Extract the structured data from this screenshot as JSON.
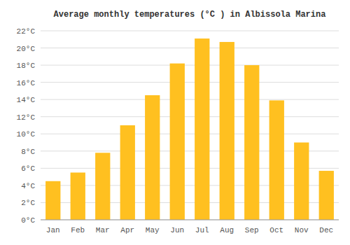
{
  "chart_data": {
    "type": "bar",
    "title": "Average monthly temperatures (°C ) in Albissola Marina",
    "categories": [
      "Jan",
      "Feb",
      "Mar",
      "Apr",
      "May",
      "Jun",
      "Jul",
      "Aug",
      "Sep",
      "Oct",
      "Nov",
      "Dec"
    ],
    "values": [
      4.5,
      5.5,
      7.8,
      11.0,
      14.5,
      18.2,
      21.1,
      20.7,
      18.0,
      13.9,
      9.0,
      5.7
    ],
    "color": "#FFC020",
    "ylim": [
      0,
      22
    ],
    "yticks": [
      {
        "value": 0,
        "label": "0°C"
      },
      {
        "value": 2,
        "label": "2°C"
      },
      {
        "value": 4,
        "label": "4°C"
      },
      {
        "value": 6,
        "label": "6°C"
      },
      {
        "value": 8,
        "label": "8°C"
      },
      {
        "value": 10,
        "label": "10°C"
      },
      {
        "value": 12,
        "label": "12°C"
      },
      {
        "value": 14,
        "label": "14°C"
      },
      {
        "value": 16,
        "label": "16°C"
      },
      {
        "value": 18,
        "label": "18°C"
      },
      {
        "value": 20,
        "label": "20°C"
      },
      {
        "value": 22,
        "label": "22°C"
      }
    ],
    "grid": true
  }
}
